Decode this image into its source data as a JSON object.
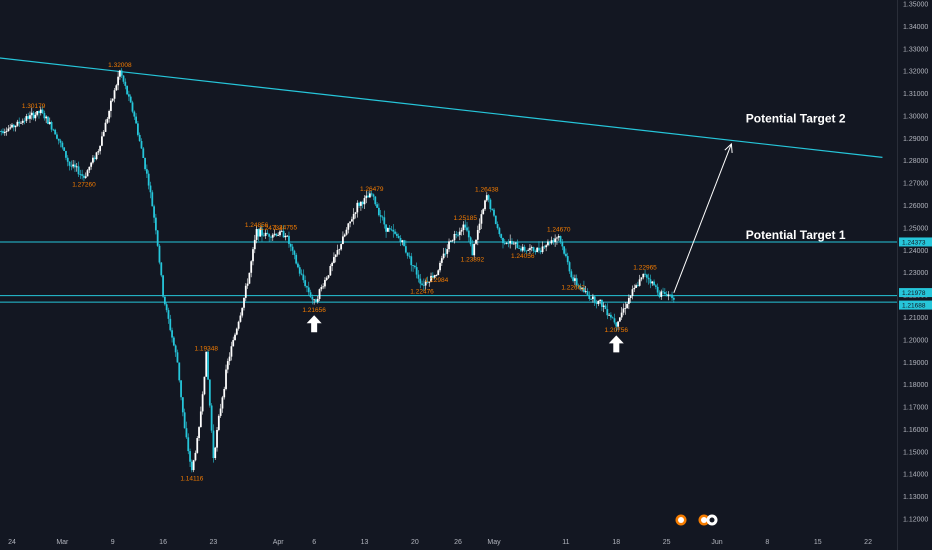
{
  "colors": {
    "background": "#131722",
    "axis_text": "#b2b5be",
    "candle_up": "#ffffff",
    "candle_down": "#26c6da",
    "trendline": "#26c6da",
    "annotation": "#f57c00",
    "target_text": "#ffffff",
    "arrow": "#ffffff",
    "price_tag": "#26c6da"
  },
  "chart_data": {
    "type": "candlestick",
    "x_ticks": [
      {
        "label": "24",
        "date": "2020-02-24"
      },
      {
        "label": "Mar",
        "date": "2020-03-02"
      },
      {
        "label": "9",
        "date": "2020-03-09"
      },
      {
        "label": "16",
        "date": "2020-03-16"
      },
      {
        "label": "23",
        "date": "2020-03-23"
      },
      {
        "label": "Apr",
        "date": "2020-04-01"
      },
      {
        "label": "6",
        "date": "2020-04-06"
      },
      {
        "label": "13",
        "date": "2020-04-13"
      },
      {
        "label": "20",
        "date": "2020-04-20"
      },
      {
        "label": "26",
        "date": "2020-04-26"
      },
      {
        "label": "May",
        "date": "2020-05-01"
      },
      {
        "label": "11",
        "date": "2020-05-11"
      },
      {
        "label": "18",
        "date": "2020-05-18"
      },
      {
        "label": "25",
        "date": "2020-05-25"
      },
      {
        "label": "Jun",
        "date": "2020-06-01"
      },
      {
        "label": "8",
        "date": "2020-06-08"
      },
      {
        "label": "15",
        "date": "2020-06-15"
      },
      {
        "label": "22",
        "date": "2020-06-22"
      }
    ],
    "y_ticks": [
      "1.35000",
      "1.34000",
      "1.33000",
      "1.32000",
      "1.31000",
      "1.30000",
      "1.29000",
      "1.28000",
      "1.27000",
      "1.26000",
      "1.25000",
      "1.24000",
      "1.23000",
      "1.22000",
      "1.21000",
      "1.20000",
      "1.19000",
      "1.18000",
      "1.17000",
      "1.16000",
      "1.15000",
      "1.14000",
      "1.13000",
      "1.12000"
    ],
    "y_range": [
      1.115,
      1.353
    ],
    "price_series": [
      [
        "2020-02-22",
        1.293
      ],
      [
        "2020-02-24",
        1.295
      ],
      [
        "2020-02-26",
        1.299
      ],
      [
        "2020-02-28",
        1.3018
      ],
      [
        "2020-03-01",
        1.293
      ],
      [
        "2020-03-03",
        1.278
      ],
      [
        "2020-03-04",
        1.276
      ],
      [
        "2020-03-05",
        1.2726
      ],
      [
        "2020-03-07",
        1.285
      ],
      [
        "2020-03-09",
        1.308
      ],
      [
        "2020-03-10",
        1.3201
      ],
      [
        "2020-03-12",
        1.3
      ],
      [
        "2020-03-13",
        1.285
      ],
      [
        "2020-03-14",
        1.27
      ],
      [
        "2020-03-15",
        1.25
      ],
      [
        "2020-03-16",
        1.22
      ],
      [
        "2020-03-18",
        1.19
      ],
      [
        "2020-03-19",
        1.16
      ],
      [
        "2020-03-20",
        1.1412
      ],
      [
        "2020-03-21",
        1.16
      ],
      [
        "2020-03-22",
        1.1935
      ],
      [
        "2020-03-23",
        1.148
      ],
      [
        "2020-03-24",
        1.17
      ],
      [
        "2020-03-25",
        1.19
      ],
      [
        "2020-03-27",
        1.215
      ],
      [
        "2020-03-28",
        1.23
      ],
      [
        "2020-03-29",
        1.2485
      ],
      [
        "2020-03-30",
        1.247
      ],
      [
        "2020-03-31",
        1.2473
      ],
      [
        "2020-04-02",
        1.2475
      ],
      [
        "2020-04-04",
        1.23
      ],
      [
        "2020-04-06",
        1.2166
      ],
      [
        "2020-04-08",
        1.23
      ],
      [
        "2020-04-10",
        1.245
      ],
      [
        "2020-04-12",
        1.26
      ],
      [
        "2020-04-14",
        1.2648
      ],
      [
        "2020-04-16",
        1.25
      ],
      [
        "2020-04-18",
        1.245
      ],
      [
        "2020-04-21",
        1.2248
      ],
      [
        "2020-04-23",
        1.2298
      ],
      [
        "2020-04-25",
        1.245
      ],
      [
        "2020-04-27",
        1.2519
      ],
      [
        "2020-04-28",
        1.2389
      ],
      [
        "2020-04-30",
        1.2644
      ],
      [
        "2020-05-02",
        1.245
      ],
      [
        "2020-05-05",
        1.2406
      ],
      [
        "2020-05-07",
        1.24
      ],
      [
        "2020-05-10",
        1.2467
      ],
      [
        "2020-05-12",
        1.2266
      ],
      [
        "2020-05-14",
        1.22
      ],
      [
        "2020-05-16",
        1.216
      ],
      [
        "2020-05-18",
        1.2076
      ],
      [
        "2020-05-20",
        1.22
      ],
      [
        "2020-05-22",
        1.2297
      ],
      [
        "2020-05-24",
        1.221
      ],
      [
        "2020-05-26",
        1.2197
      ]
    ],
    "price_labels": [
      {
        "text": "1.30179",
        "date": "2020-02-27",
        "price": 1.30179,
        "pos": "above"
      },
      {
        "text": "1.27260",
        "date": "2020-03-05",
        "price": 1.2726,
        "pos": "below"
      },
      {
        "text": "1.32008",
        "date": "2020-03-10",
        "price": 1.32008,
        "pos": "above"
      },
      {
        "text": "1.19348",
        "date": "2020-03-22",
        "price": 1.19348,
        "pos": "above"
      },
      {
        "text": "1.14116",
        "date": "2020-03-20",
        "price": 1.14116,
        "pos": "below"
      },
      {
        "text": "1.24856",
        "date": "2020-03-29",
        "price": 1.24856,
        "pos": "above"
      },
      {
        "text": "1.24734",
        "date": "2020-03-31",
        "price": 1.24734,
        "pos": "above"
      },
      {
        "text": "1.24755",
        "date": "2020-04-02",
        "price": 1.24755,
        "pos": "above"
      },
      {
        "text": "1.21656",
        "date": "2020-04-06",
        "price": 1.21656,
        "pos": "below"
      },
      {
        "text": "1.26479",
        "date": "2020-04-14",
        "price": 1.26479,
        "pos": "above"
      },
      {
        "text": "1.22476",
        "date": "2020-04-21",
        "price": 1.22476,
        "pos": "below"
      },
      {
        "text": "1.22984",
        "date": "2020-04-23",
        "price": 1.22984,
        "pos": "below"
      },
      {
        "text": "1.25185",
        "date": "2020-04-27",
        "price": 1.25185,
        "pos": "above"
      },
      {
        "text": "1.23892",
        "date": "2020-04-28",
        "price": 1.23892,
        "pos": "below"
      },
      {
        "text": "1.26438",
        "date": "2020-04-30",
        "price": 1.26438,
        "pos": "above"
      },
      {
        "text": "1.24056",
        "date": "2020-05-05",
        "price": 1.24056,
        "pos": "below"
      },
      {
        "text": "1.24670",
        "date": "2020-05-10",
        "price": 1.2467,
        "pos": "above"
      },
      {
        "text": "1.22662",
        "date": "2020-05-12",
        "price": 1.22662,
        "pos": "below"
      },
      {
        "text": "1.20756",
        "date": "2020-05-18",
        "price": 1.20756,
        "pos": "below"
      },
      {
        "text": "1.22965",
        "date": "2020-05-22",
        "price": 1.22965,
        "pos": "above"
      }
    ],
    "trendline": {
      "start": [
        "2020-02-22",
        1.326
      ],
      "end": [
        "2020-06-24",
        1.2815
      ]
    },
    "horizontal_lines": [
      {
        "name": "resistance",
        "price": 1.24373
      },
      {
        "name": "support-upper",
        "price": 1.21978
      },
      {
        "name": "support-lower",
        "price": 1.21688
      }
    ],
    "price_tags": [
      {
        "text": "1.24373",
        "price": 1.24373
      },
      {
        "text": "1.21978",
        "price": 1.21978
      },
      {
        "text": "1.21688",
        "price": 1.21688
      }
    ],
    "targets": [
      {
        "text": "Potential Target 2",
        "date": "2020-06-05",
        "price": 1.297
      },
      {
        "text": "Potential Target 1",
        "date": "2020-06-05",
        "price": 1.245
      }
    ],
    "projection_arrow": {
      "from": [
        "2020-05-26",
        1.221
      ],
      "to": [
        "2020-06-03",
        1.2875
      ]
    },
    "up_arrows": [
      {
        "date": "2020-04-06",
        "price": 1.211
      },
      {
        "date": "2020-05-18",
        "price": 1.202
      }
    ]
  }
}
